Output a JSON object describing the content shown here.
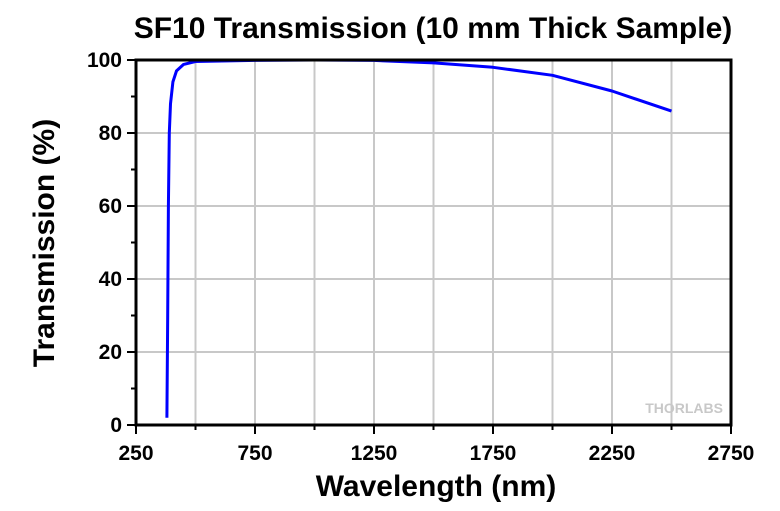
{
  "chart_data": {
    "type": "line",
    "title": "SF10 Transmission (10 mm Thick Sample)",
    "xlabel": "Wavelength (nm)",
    "ylabel": "Transmission (%)",
    "xlim": [
      250,
      2750
    ],
    "ylim": [
      0,
      100
    ],
    "xticks": [
      250,
      750,
      1250,
      1750,
      2250,
      2750
    ],
    "yticks": [
      0,
      20,
      40,
      60,
      80,
      100
    ],
    "grid": true,
    "watermark": "THORLABS",
    "series": [
      {
        "name": "SF10",
        "color": "#0000ff",
        "x": [
          380,
          383,
          386,
          390,
          395,
          405,
          420,
          450,
          500,
          750,
          1000,
          1250,
          1500,
          1750,
          2000,
          2250,
          2500
        ],
        "y": [
          2,
          30,
          60,
          80,
          88,
          94,
          97,
          98.8,
          99.6,
          99.9,
          100,
          99.9,
          99.2,
          98,
          95.8,
          91.5,
          86
        ]
      }
    ]
  }
}
